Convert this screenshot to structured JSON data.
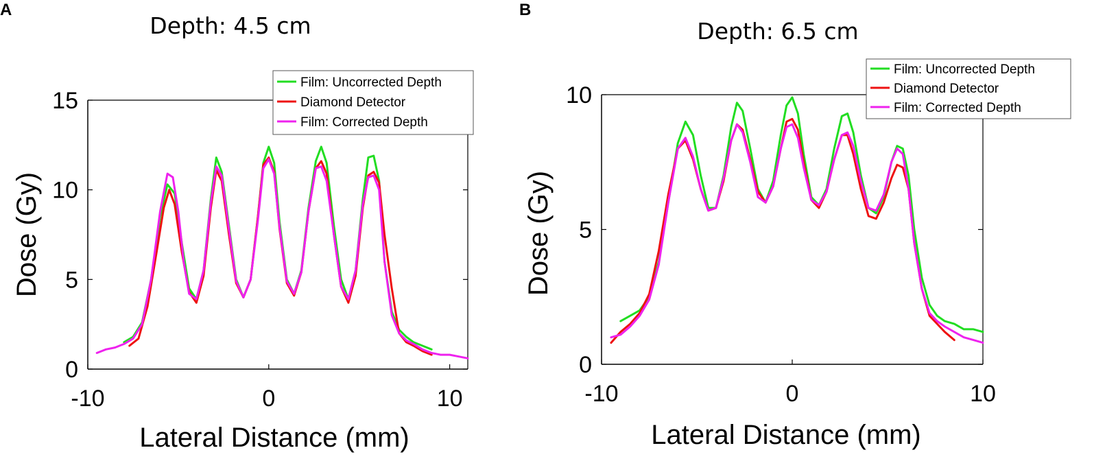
{
  "colors": {
    "uncorrected": "#22dd22",
    "diamond": "#ee1111",
    "corrected": "#ee22ee",
    "axis": "#000000"
  },
  "chart_data": [
    {
      "panel": "A",
      "type": "line",
      "title": "Depth: 4.5 cm",
      "xlabel": "Lateral Distance (mm)",
      "ylabel": "Dose (Gy)",
      "xlim": [
        -10,
        11
      ],
      "ylim": [
        0,
        15
      ],
      "xticks": [
        -10,
        0,
        10
      ],
      "xtick_labels": [
        "-10",
        "0",
        "10"
      ],
      "yticks": [
        0,
        5,
        10,
        15
      ],
      "ytick_labels": [
        "0",
        "5",
        "10",
        "15"
      ],
      "legend_position": "top-right",
      "legend": [
        "Film: Uncorrected Depth",
        "Diamond Detector",
        "Film: Corrected Depth"
      ],
      "series": [
        {
          "name": "Film: Uncorrected Depth",
          "color_key": "uncorrected",
          "x": [
            -8,
            -7.5,
            -7,
            -6.5,
            -6,
            -5.6,
            -5.2,
            -4.8,
            -4.4,
            -4,
            -3.6,
            -3.2,
            -2.9,
            -2.6,
            -2.2,
            -1.8,
            -1.4,
            -1,
            -0.6,
            -0.3,
            0,
            0.3,
            0.6,
            1,
            1.4,
            1.8,
            2.2,
            2.6,
            2.9,
            3.2,
            3.6,
            4,
            4.4,
            4.8,
            5.2,
            5.5,
            5.8,
            6.1,
            6.4,
            6.8,
            7.2,
            7.6,
            8,
            8.5,
            9
          ],
          "y": [
            1.5,
            1.8,
            2.6,
            5.0,
            8.5,
            10.3,
            9.8,
            7.0,
            4.5,
            3.9,
            5.5,
            9.5,
            11.8,
            11.0,
            8.0,
            5.0,
            4.0,
            5.0,
            8.5,
            11.5,
            12.4,
            11.5,
            8.2,
            5.0,
            4.2,
            5.5,
            9.0,
            11.6,
            12.4,
            11.5,
            8.0,
            5.0,
            3.9,
            5.5,
            9.5,
            11.8,
            11.9,
            10.5,
            6.0,
            3.2,
            2.2,
            1.8,
            1.5,
            1.3,
            1.1
          ]
        },
        {
          "name": "Diamond Detector",
          "color_key": "diamond",
          "x": [
            -7.7,
            -7.2,
            -6.7,
            -6.2,
            -5.8,
            -5.5,
            -5.2,
            -4.8,
            -4.4,
            -4,
            -3.6,
            -3.2,
            -2.9,
            -2.6,
            -2.2,
            -1.8,
            -1.4,
            -1,
            -0.6,
            -0.3,
            0,
            0.3,
            0.6,
            1,
            1.4,
            1.8,
            2.2,
            2.6,
            2.9,
            3.2,
            3.6,
            4,
            4.4,
            4.8,
            5.2,
            5.5,
            5.8,
            6.1,
            6.4,
            6.8,
            7.2,
            7.6,
            8,
            8.5,
            9
          ],
          "y": [
            1.3,
            1.7,
            3.5,
            6.5,
            9.0,
            10.0,
            9.2,
            6.5,
            4.3,
            3.7,
            5.2,
            9.0,
            11.1,
            10.5,
            7.5,
            4.8,
            4.0,
            5.0,
            8.5,
            11.4,
            11.8,
            11.0,
            7.8,
            4.8,
            4.1,
            5.4,
            8.8,
            11.2,
            11.6,
            10.9,
            7.5,
            4.6,
            3.7,
            5.2,
            9.0,
            10.8,
            11.0,
            10.4,
            7.5,
            4.5,
            2.0,
            1.5,
            1.3,
            1.0,
            0.8
          ]
        },
        {
          "name": "Film: Corrected Depth",
          "color_key": "corrected",
          "x": [
            -9.5,
            -9,
            -8.5,
            -8,
            -7.5,
            -7,
            -6.5,
            -6,
            -5.6,
            -5.3,
            -5,
            -4.7,
            -4.4,
            -4,
            -3.6,
            -3.2,
            -2.9,
            -2.6,
            -2.2,
            -1.8,
            -1.4,
            -1,
            -0.6,
            -0.3,
            0,
            0.3,
            0.6,
            1,
            1.4,
            1.8,
            2.2,
            2.6,
            2.9,
            3.2,
            3.6,
            4,
            4.4,
            4.8,
            5.2,
            5.5,
            5.8,
            6.1,
            6.4,
            6.8,
            7.2,
            7.6,
            8,
            8.5,
            9,
            9.5,
            10,
            10.5,
            11
          ],
          "y": [
            0.9,
            1.1,
            1.2,
            1.4,
            1.7,
            2.5,
            5.0,
            8.8,
            10.9,
            10.7,
            8.8,
            6.0,
            4.2,
            3.9,
            5.5,
            9.3,
            11.3,
            10.8,
            7.8,
            4.9,
            4.0,
            5.0,
            8.3,
            11.2,
            11.7,
            10.9,
            7.9,
            4.9,
            4.2,
            5.4,
            8.8,
            11.2,
            11.3,
            10.5,
            7.5,
            4.6,
            3.9,
            5.5,
            9.2,
            10.7,
            10.8,
            10.0,
            6.0,
            3.0,
            2.0,
            1.6,
            1.4,
            1.1,
            0.9,
            0.8,
            0.8,
            0.7,
            0.6
          ]
        }
      ]
    },
    {
      "panel": "B",
      "type": "line",
      "title": "Depth: 6.5 cm",
      "xlabel": "Lateral Distance (mm)",
      "ylabel": "Dose (Gy)",
      "xlim": [
        -10,
        10
      ],
      "ylim": [
        0,
        10
      ],
      "xticks": [
        -10,
        0,
        10
      ],
      "xtick_labels": [
        "-10",
        "0",
        "10"
      ],
      "yticks": [
        0,
        5,
        10
      ],
      "ytick_labels": [
        "0",
        "5",
        "10"
      ],
      "legend_position": "top-right",
      "legend": [
        "Film: Uncorrected Depth",
        "Diamond Detector",
        "Film: Corrected Depth"
      ],
      "series": [
        {
          "name": "Film: Uncorrected Depth",
          "color_key": "uncorrected",
          "x": [
            -9,
            -8.5,
            -8,
            -7.5,
            -7,
            -6.5,
            -6,
            -5.6,
            -5.2,
            -4.8,
            -4.4,
            -4,
            -3.6,
            -3.2,
            -2.9,
            -2.6,
            -2.2,
            -1.8,
            -1.4,
            -1,
            -0.6,
            -0.3,
            0,
            0.3,
            0.6,
            1,
            1.4,
            1.8,
            2.2,
            2.6,
            2.9,
            3.2,
            3.6,
            4,
            4.4,
            4.8,
            5.2,
            5.5,
            5.8,
            6.1,
            6.4,
            6.8,
            7.2,
            7.6,
            8,
            8.5,
            9,
            9.5,
            10
          ],
          "y": [
            1.6,
            1.8,
            2.0,
            2.5,
            3.8,
            6.0,
            8.2,
            9.0,
            8.5,
            7.0,
            5.8,
            5.8,
            7.0,
            8.8,
            9.7,
            9.4,
            8.0,
            6.5,
            6.0,
            6.8,
            8.5,
            9.6,
            9.9,
            9.3,
            7.8,
            6.2,
            5.9,
            6.5,
            8.0,
            9.2,
            9.3,
            8.6,
            7.0,
            5.8,
            5.6,
            6.2,
            7.5,
            8.1,
            8.0,
            7.0,
            5.0,
            3.2,
            2.2,
            1.8,
            1.6,
            1.5,
            1.3,
            1.3,
            1.2
          ]
        },
        {
          "name": "Diamond Detector",
          "color_key": "diamond",
          "x": [
            -9.5,
            -9,
            -8.5,
            -8,
            -7.5,
            -7,
            -6.5,
            -6,
            -5.6,
            -5.2,
            -4.8,
            -4.4,
            -4,
            -3.6,
            -3.2,
            -2.9,
            -2.6,
            -2.2,
            -1.8,
            -1.4,
            -1,
            -0.6,
            -0.3,
            0,
            0.3,
            0.6,
            1,
            1.4,
            1.8,
            2.2,
            2.6,
            2.9,
            3.2,
            3.6,
            4,
            4.4,
            4.8,
            5.2,
            5.5,
            5.8,
            6.1,
            6.4,
            6.8,
            7.2,
            7.6,
            8,
            8.5
          ],
          "y": [
            0.8,
            1.2,
            1.5,
            1.9,
            2.6,
            4.2,
            6.3,
            8.0,
            8.3,
            7.6,
            6.5,
            5.7,
            5.8,
            6.8,
            8.3,
            8.9,
            8.7,
            7.6,
            6.4,
            6.0,
            6.6,
            8.0,
            9.0,
            9.1,
            8.7,
            7.5,
            6.1,
            5.8,
            6.4,
            7.6,
            8.5,
            8.5,
            7.8,
            6.5,
            5.5,
            5.4,
            6.0,
            6.9,
            7.4,
            7.3,
            6.5,
            4.5,
            2.8,
            1.8,
            1.5,
            1.2,
            0.9
          ]
        },
        {
          "name": "Film: Corrected Depth",
          "color_key": "corrected",
          "x": [
            -9.5,
            -9,
            -8.5,
            -8,
            -7.5,
            -7,
            -6.5,
            -6,
            -5.6,
            -5.2,
            -4.8,
            -4.4,
            -4,
            -3.6,
            -3.2,
            -2.9,
            -2.6,
            -2.2,
            -1.8,
            -1.4,
            -1,
            -0.6,
            -0.3,
            0,
            0.3,
            0.6,
            1,
            1.4,
            1.8,
            2.2,
            2.6,
            2.9,
            3.2,
            3.6,
            4,
            4.4,
            4.8,
            5.2,
            5.5,
            5.8,
            6.1,
            6.4,
            6.8,
            7.2,
            7.6,
            8,
            8.5,
            9,
            9.5,
            10
          ],
          "y": [
            1.0,
            1.1,
            1.4,
            1.8,
            2.4,
            3.7,
            6.0,
            8.0,
            8.4,
            7.7,
            6.5,
            5.7,
            5.8,
            6.9,
            8.3,
            8.9,
            8.6,
            7.5,
            6.2,
            6.0,
            6.6,
            8.0,
            8.8,
            8.9,
            8.4,
            7.3,
            6.1,
            5.9,
            6.4,
            7.6,
            8.5,
            8.6,
            8.1,
            6.8,
            5.8,
            5.7,
            6.3,
            7.5,
            8.0,
            7.8,
            6.5,
            4.5,
            2.8,
            1.9,
            1.6,
            1.4,
            1.2,
            1.0,
            0.9,
            0.8
          ]
        }
      ]
    }
  ]
}
